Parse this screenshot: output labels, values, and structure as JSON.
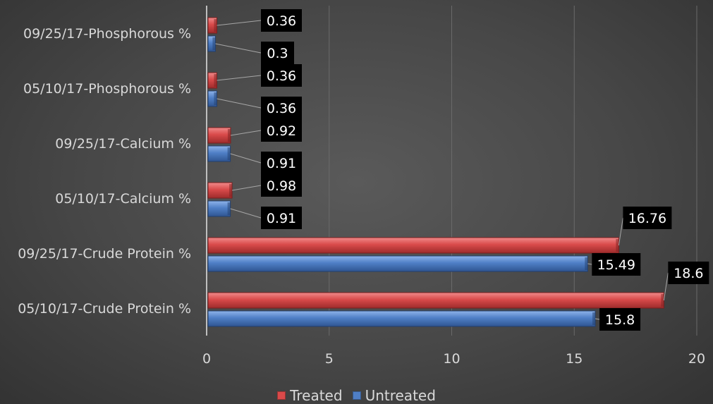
{
  "chart_data": {
    "type": "bar",
    "orientation": "horizontal",
    "categories": [
      "05/10/17-Crude Protein %",
      "09/25/17-Crude Protein %",
      "05/10/17-Calcium %",
      "09/25/17-Calcium %",
      "05/10/17-Phosphorous %",
      "09/25/17-Phosphorous %"
    ],
    "series": [
      {
        "name": "Untreated",
        "color": "#4f7fc6",
        "values": [
          15.8,
          15.49,
          0.91,
          0.91,
          0.36,
          0.3
        ]
      },
      {
        "name": "Treated",
        "color": "#d94a4a",
        "values": [
          18.6,
          16.76,
          0.98,
          0.92,
          0.36,
          0.36
        ]
      }
    ],
    "xlim": [
      0,
      20
    ],
    "x_ticks": [
      "0",
      "5",
      "10",
      "15",
      "20"
    ],
    "grid": true,
    "data_labels": [
      [
        "15.8",
        "15.49",
        "0.91",
        "0.91",
        "0.36",
        "0.3"
      ],
      [
        "18.6",
        "16.76",
        "0.98",
        "0.92",
        "0.36",
        "0.36"
      ]
    ],
    "legend_position": "bottom",
    "legend_order": [
      "Treated",
      "Untreated"
    ]
  }
}
